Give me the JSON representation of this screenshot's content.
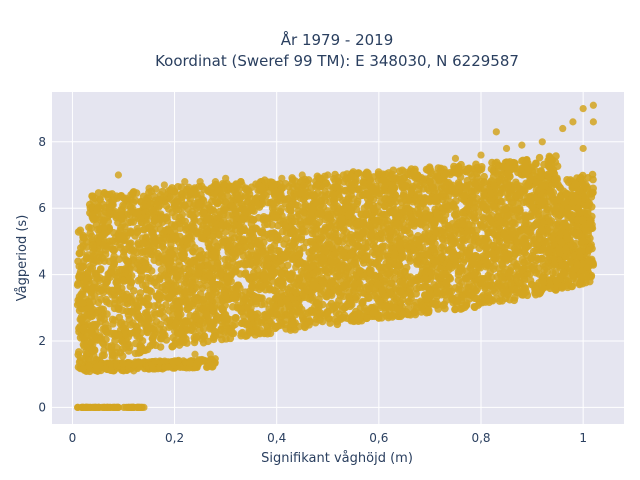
{
  "chart_data": {
    "type": "scatter",
    "title_line1": "År 1979 - 2019",
    "title_line2": "Koordinat (Sweref 99 TM): E 348030, N 6229587",
    "xlabel": "Signifikant våghöjd (m)",
    "ylabel": "Vågperiod (s)",
    "xlim": [
      -0.04,
      1.08
    ],
    "ylim": [
      -0.5,
      9.5
    ],
    "xticks": [
      0,
      0.2,
      0.4,
      0.6,
      0.8,
      1
    ],
    "xtick_labels": [
      "0",
      "0,2",
      "0,4",
      "0,6",
      "0,8",
      "1"
    ],
    "yticks": [
      0,
      2,
      4,
      6,
      8
    ],
    "ytick_labels": [
      "0",
      "2",
      "4",
      "6",
      "8"
    ],
    "grid": true,
    "background_color": "#e5e5f0",
    "marker_color": "#d4a520",
    "series": [
      {
        "points": [
          [
            0.01,
            0.0
          ],
          [
            0.03,
            0.0
          ],
          [
            0.05,
            0.0
          ],
          [
            0.07,
            0.0
          ],
          [
            0.09,
            0.0
          ],
          [
            0.11,
            0.0
          ],
          [
            0.13,
            0.0
          ],
          [
            0.14,
            0.0
          ],
          [
            0.015,
            1.2
          ],
          [
            0.02,
            2.1
          ],
          [
            0.02,
            3.0
          ],
          [
            0.025,
            4.0
          ],
          [
            0.03,
            4.6
          ],
          [
            0.02,
            5.0
          ],
          [
            0.015,
            1.5
          ],
          [
            0.05,
            1.1
          ],
          [
            0.08,
            1.1
          ],
          [
            0.1,
            1.1
          ],
          [
            0.12,
            1.1
          ],
          [
            0.15,
            1.2
          ],
          [
            0.18,
            1.3
          ],
          [
            0.21,
            1.3
          ],
          [
            0.24,
            1.6
          ],
          [
            0.27,
            1.6
          ],
          [
            0.05,
            5.8
          ],
          [
            0.08,
            6.1
          ],
          [
            0.1,
            6.3
          ],
          [
            0.09,
            7.0
          ],
          [
            0.12,
            6.5
          ],
          [
            0.15,
            6.6
          ],
          [
            0.18,
            6.7
          ],
          [
            0.22,
            6.8
          ],
          [
            0.25,
            6.8
          ],
          [
            0.28,
            6.8
          ],
          [
            0.3,
            6.9
          ],
          [
            0.33,
            6.8
          ],
          [
            0.37,
            6.8
          ],
          [
            0.41,
            6.9
          ],
          [
            0.45,
            7.0
          ],
          [
            0.5,
            7.0
          ],
          [
            0.55,
            7.1
          ],
          [
            0.6,
            7.0
          ],
          [
            0.65,
            7.1
          ],
          [
            0.7,
            7.2
          ],
          [
            0.75,
            7.5
          ],
          [
            0.8,
            7.6
          ],
          [
            0.83,
            8.3
          ],
          [
            0.85,
            7.8
          ],
          [
            0.88,
            7.9
          ],
          [
            0.92,
            8.0
          ],
          [
            0.96,
            8.4
          ],
          [
            0.98,
            8.6
          ],
          [
            1.0,
            9.0
          ],
          [
            1.02,
            9.1
          ],
          [
            1.02,
            8.6
          ],
          [
            0.1,
            2.0
          ],
          [
            0.2,
            2.3
          ],
          [
            0.25,
            2.6
          ],
          [
            0.3,
            2.8
          ],
          [
            0.35,
            3.0
          ],
          [
            0.4,
            3.2
          ],
          [
            0.45,
            3.3
          ],
          [
            0.5,
            3.4
          ],
          [
            0.55,
            3.5
          ],
          [
            0.6,
            3.7
          ],
          [
            0.65,
            3.9
          ],
          [
            0.7,
            4.1
          ],
          [
            0.75,
            4.3
          ],
          [
            0.8,
            4.5
          ],
          [
            0.85,
            4.9
          ],
          [
            0.9,
            5.4
          ],
          [
            0.95,
            6.0
          ],
          [
            1.0,
            6.8
          ],
          [
            0.1,
            4.0
          ],
          [
            0.2,
            4.5
          ],
          [
            0.3,
            5.0
          ],
          [
            0.4,
            5.2
          ],
          [
            0.5,
            5.4
          ],
          [
            0.6,
            5.6
          ],
          [
            0.7,
            5.8
          ],
          [
            0.8,
            6.2
          ],
          [
            0.9,
            6.8
          ],
          [
            1.0,
            7.8
          ]
        ]
      }
    ]
  }
}
